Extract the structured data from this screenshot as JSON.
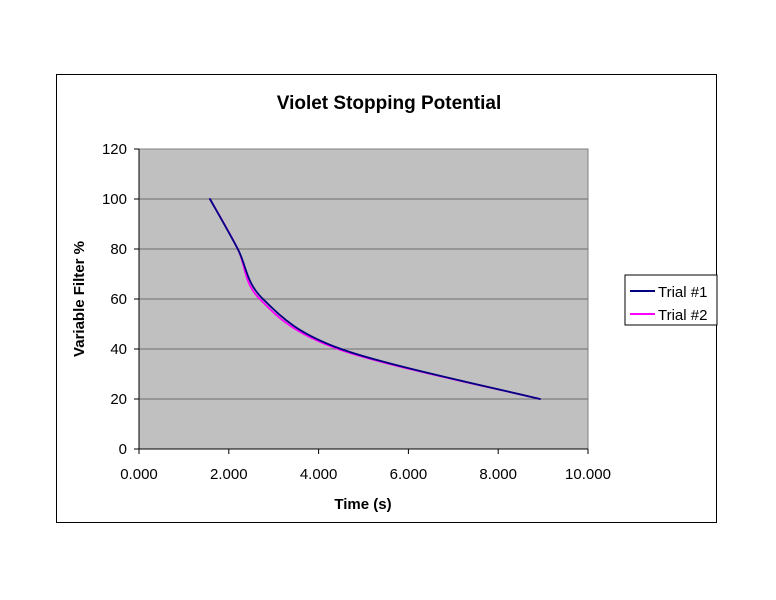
{
  "chart_data": {
    "type": "line",
    "title": "Violet Stopping Potential",
    "xlabel": "Time (s)",
    "ylabel": "Variable Filter %",
    "xlim": [
      0,
      10
    ],
    "ylim": [
      0,
      120
    ],
    "x_ticks": [
      "0.000",
      "2.000",
      "4.000",
      "6.000",
      "8.000",
      "10.000"
    ],
    "y_ticks": [
      "0",
      "20",
      "40",
      "60",
      "80",
      "100",
      "120"
    ],
    "grid": "horizontal major gridlines",
    "plot_background": "#C0C0C0",
    "legend_position": "right",
    "smoothed": true,
    "series": [
      {
        "name": "Trial #1",
        "color": "#000080",
        "x": [
          1.58,
          2.2,
          2.76,
          4.5,
          8.93
        ],
        "y": [
          100,
          80,
          60,
          40,
          20
        ]
      },
      {
        "name": "Trial #2",
        "color": "#FF00FF",
        "x": [
          1.58,
          2.2,
          2.69,
          4.43,
          8.93
        ],
        "y": [
          100,
          80,
          60,
          40,
          20
        ]
      }
    ]
  },
  "legend": {
    "items": [
      {
        "label": "Trial #1",
        "color": "#000080"
      },
      {
        "label": "Trial #2",
        "color": "#FF00FF"
      }
    ]
  }
}
